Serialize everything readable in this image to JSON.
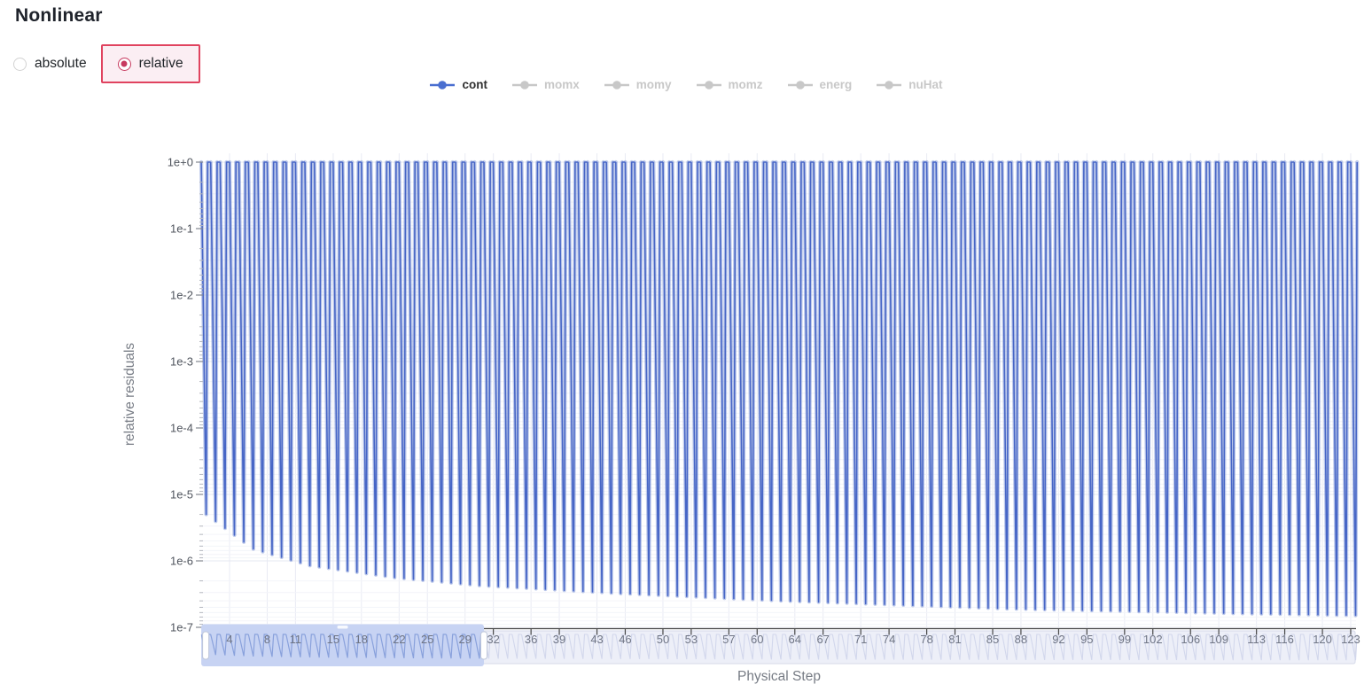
{
  "page": {
    "title": "Nonlinear"
  },
  "controls": {
    "mode_options": [
      {
        "label": "absolute",
        "selected": false
      },
      {
        "label": "relative",
        "selected": true
      }
    ]
  },
  "legend": {
    "items": [
      {
        "label": "cont",
        "active": true
      },
      {
        "label": "momx",
        "active": false
      },
      {
        "label": "momy",
        "active": false
      },
      {
        "label": "momz",
        "active": false
      },
      {
        "label": "energ",
        "active": false
      },
      {
        "label": "nuHat",
        "active": false
      }
    ],
    "active_color": "#4a6fd0",
    "active_text_color": "#303030",
    "inactive_color": "#c8c8c8"
  },
  "chart_data": {
    "type": "line",
    "xlabel": "Physical Step",
    "ylabel": "relative residuals",
    "x_range": [
      1,
      123
    ],
    "x_tick_labels": [
      4,
      8,
      11,
      15,
      18,
      22,
      25,
      29,
      32,
      36,
      39,
      43,
      46,
      50,
      53,
      57,
      60,
      64,
      67,
      71,
      74,
      78,
      81,
      85,
      88,
      92,
      95,
      99,
      102,
      106,
      109,
      113,
      116,
      120,
      123
    ],
    "y_tick_labels": [
      "1e+0",
      "1e-1",
      "1e-2",
      "1e-3",
      "1e-4",
      "1e-5",
      "1e-6",
      "1e-7"
    ],
    "y_log_range": [
      -7,
      0
    ],
    "y_scale": "log",
    "grid": true,
    "series": [
      {
        "name": "cont",
        "color": "#4766c6",
        "halo_color": "rgba(124,148,216,0.5)",
        "pattern": "sawtooth: residual restarts at 1e+0 every physical step and converges down to a per-step minimum",
        "steps": 123,
        "peak_log10": 0,
        "min_log10_anchors": [
          [
            1,
            -5.3
          ],
          [
            6,
            -5.82
          ],
          [
            12,
            -6.07
          ],
          [
            21,
            -6.25
          ],
          [
            30,
            -6.37
          ],
          [
            45,
            -6.49
          ],
          [
            62,
            -6.6
          ],
          [
            86,
            -6.72
          ],
          [
            110,
            -6.79
          ],
          [
            123,
            -6.82
          ]
        ]
      }
    ],
    "rangeslider": {
      "visible": true,
      "selected_range": [
        1,
        31
      ]
    }
  },
  "colors": {
    "accent_crimson": "#c73a5f",
    "radio_highlight_bg": "#fbeef3",
    "radio_highlight_border": "#e0435f",
    "axis_line": "#474747",
    "grid_major": "#e6e8f0",
    "grid_minor": "#f3f4f9",
    "grid_vertical": "#e9ebf4",
    "slider_track_bg": "#edeff8",
    "slider_track_stroke": "#d6dae9",
    "slider_mini_line": "#d2d7ec",
    "slider_selected_bg": "#c7d3f3",
    "slider_selected_line": "#89a1dc",
    "slider_handle_stroke": "#bfc7da"
  }
}
